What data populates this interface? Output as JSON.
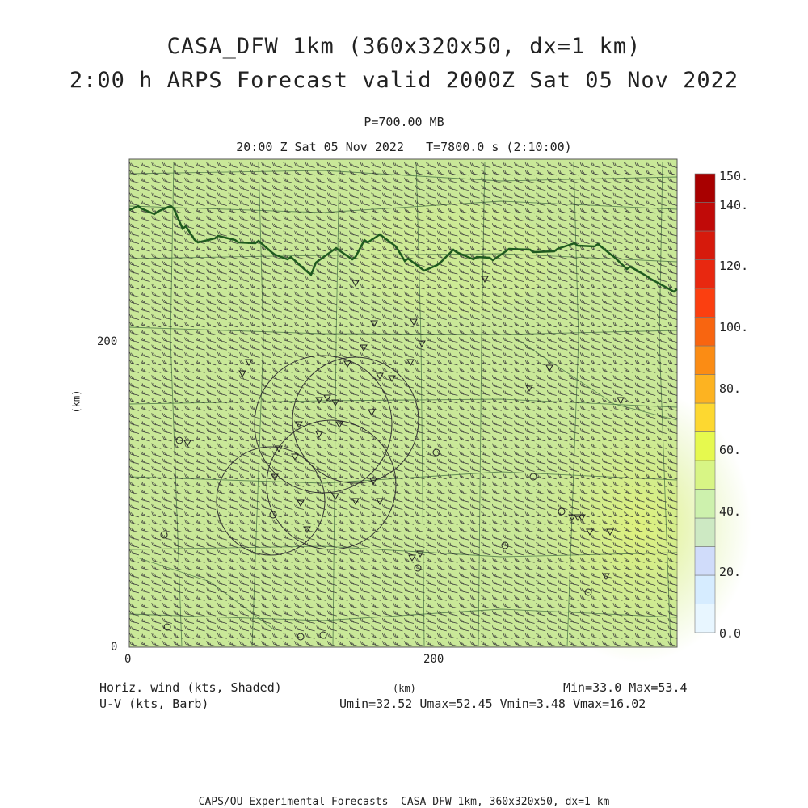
{
  "title_line1": "CASA_DFW 1km (360x320x50, dx=1 km)",
  "title_line2": "2:00 h ARPS Forecast valid 2000Z Sat 05 Nov 2022",
  "pressure_label": "P=700.00 MB",
  "time_label": "20:00 Z Sat 05 Nov 2022   T=7800.0 s (2:10:00)",
  "y_axis": {
    "label": "(km)",
    "ticks": [
      "0",
      "200"
    ]
  },
  "x_axis": {
    "label": "(km)",
    "ticks": [
      "0",
      "200"
    ]
  },
  "legend_left_line1": "Horiz. wind (kts, Shaded)",
  "legend_left_line2": "U-V (kts, Barb)",
  "stats_line1": "Min=33.0 Max=53.4",
  "stats_line2": "Umin=32.52 Umax=52.45 Vmin=3.48 Vmax=16.02",
  "footer": "CAPS/OU Experimental Forecasts  CASA DFW 1km, 360x320x50, dx=1 km",
  "colorbar": {
    "labels": [
      "150.",
      "140.",
      "120.",
      "100.",
      "80.",
      "60.",
      "40.",
      "20.",
      "0.0"
    ],
    "colors": [
      "#e8f6ff",
      "#d6ecff",
      "#d0dcfa",
      "#cde9c3",
      "#cdf1ad",
      "#d8f585",
      "#e6f94e",
      "#fdd830",
      "#fdb321",
      "#fb8c14",
      "#f86510",
      "#fb3f10",
      "#e82810",
      "#d61a0c",
      "#c00a08",
      "#a80000"
    ]
  },
  "colors": {
    "field": "#c8e896",
    "field_strong": "#d4ee8a",
    "river": "#1f5a1f",
    "lines": "#4a6a4a"
  }
}
